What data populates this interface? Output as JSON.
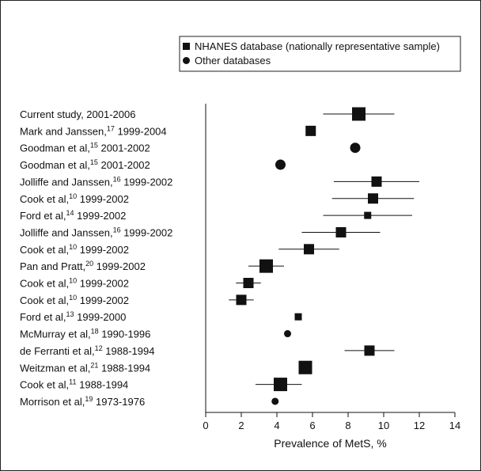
{
  "chart_data": {
    "type": "scatter",
    "subtype": "forest-plot",
    "xlabel": "Prevalence of MetS, %",
    "xlim": [
      0,
      14
    ],
    "xticks": [
      "0",
      "2",
      "4",
      "6",
      "8",
      "10",
      "12",
      "14"
    ],
    "grid": false,
    "legend_placement": "top-right",
    "legend": [
      {
        "marker": "square",
        "label": "NHANES database (nationally representative sample)"
      },
      {
        "marker": "circle",
        "label": "Other databases"
      }
    ],
    "studies": [
      {
        "label": "Current study, 2001-2006",
        "author": "Current study",
        "ref": "",
        "years": "2001-2006",
        "marker": "square",
        "size": "large",
        "estimate": 8.6,
        "ci": [
          6.6,
          10.6
        ]
      },
      {
        "label": "Mark and Janssen,17 1999-2004",
        "author": "Mark and Janssen,",
        "ref": "17",
        "years": "1999-2004",
        "marker": "square",
        "size": "medium",
        "estimate": 5.9,
        "ci": null
      },
      {
        "label": "Goodman et al,15 2001-2002",
        "author": "Goodman et al,",
        "ref": "15",
        "years": "2001-2002",
        "marker": "circle",
        "size": "medium",
        "estimate": 8.4,
        "ci": null
      },
      {
        "label": "Goodman et al,15 2001-2002",
        "author": "Goodman et al,",
        "ref": "15",
        "years": "2001-2002",
        "marker": "circle",
        "size": "medium",
        "estimate": 4.2,
        "ci": null
      },
      {
        "label": "Jolliffe and Janssen,16 1999-2002",
        "author": "Jolliffe and Janssen,",
        "ref": "16",
        "years": "1999-2002",
        "marker": "square",
        "size": "medium",
        "estimate": 9.6,
        "ci": [
          7.2,
          12.0
        ]
      },
      {
        "label": "Cook et al,10 1999-2002",
        "author": "Cook et al,",
        "ref": "10",
        "years": "1999-2002",
        "marker": "square",
        "size": "medium",
        "estimate": 9.4,
        "ci": [
          7.1,
          11.7
        ]
      },
      {
        "label": "Ford et al,14 1999-2002",
        "author": "Ford et al,",
        "ref": "14",
        "years": "1999-2002",
        "marker": "square",
        "size": "small",
        "estimate": 9.1,
        "ci": [
          6.6,
          11.6
        ]
      },
      {
        "label": "Jolliffe and Janssen,16 1999-2002",
        "author": "Jolliffe and Janssen,",
        "ref": "16",
        "years": "1999-2002",
        "marker": "square",
        "size": "medium",
        "estimate": 7.6,
        "ci": [
          5.4,
          9.8
        ]
      },
      {
        "label": "Cook et al,10 1999-2002",
        "author": "Cook et al,",
        "ref": "10",
        "years": "1999-2002",
        "marker": "square",
        "size": "medium",
        "estimate": 5.8,
        "ci": [
          4.1,
          7.5
        ]
      },
      {
        "label": "Pan and Pratt,20 1999-2002",
        "author": "Pan and Pratt,",
        "ref": "20",
        "years": "1999-2002",
        "marker": "square",
        "size": "large",
        "estimate": 3.4,
        "ci": [
          2.4,
          4.4
        ]
      },
      {
        "label": "Cook et al,10 1999-2002",
        "author": "Cook et al,",
        "ref": "10",
        "years": "1999-2002",
        "marker": "square",
        "size": "medium",
        "estimate": 2.4,
        "ci": [
          1.7,
          3.1
        ]
      },
      {
        "label": "Cook et al,10 1999-2002",
        "author": "Cook et al,",
        "ref": "10",
        "years": "1999-2002",
        "marker": "square",
        "size": "medium",
        "estimate": 2.0,
        "ci": [
          1.3,
          2.7
        ]
      },
      {
        "label": "Ford et al,13 1999-2000",
        "author": "Ford et al,",
        "ref": "13",
        "years": "1999-2000",
        "marker": "square",
        "size": "small",
        "estimate": 5.2,
        "ci": null
      },
      {
        "label": "McMurray et al,18 1990-1996",
        "author": "McMurray et al,",
        "ref": "18",
        "years": "1990-1996",
        "marker": "circle",
        "size": "small",
        "estimate": 4.6,
        "ci": null
      },
      {
        "label": "de Ferranti et al,12 1988-1994",
        "author": "de Ferranti et al,",
        "ref": "12",
        "years": "1988-1994",
        "marker": "square",
        "size": "medium",
        "estimate": 9.2,
        "ci": [
          7.8,
          10.6
        ]
      },
      {
        "label": "Weitzman et al,21 1988-1994",
        "author": "Weitzman et al,",
        "ref": "21",
        "years": "1988-1994",
        "marker": "square",
        "size": "large",
        "estimate": 5.6,
        "ci": null
      },
      {
        "label": "Cook et al,11 1988-1994",
        "author": "Cook et al,",
        "ref": "11",
        "years": "1988-1994",
        "marker": "square",
        "size": "large",
        "estimate": 4.2,
        "ci": [
          2.8,
          5.4
        ]
      },
      {
        "label": "Morrison et al,19 1973-1976",
        "author": "Morrison et al,",
        "ref": "19",
        "years": "1973-1976",
        "marker": "circle",
        "size": "small",
        "estimate": 3.9,
        "ci": null
      }
    ]
  }
}
